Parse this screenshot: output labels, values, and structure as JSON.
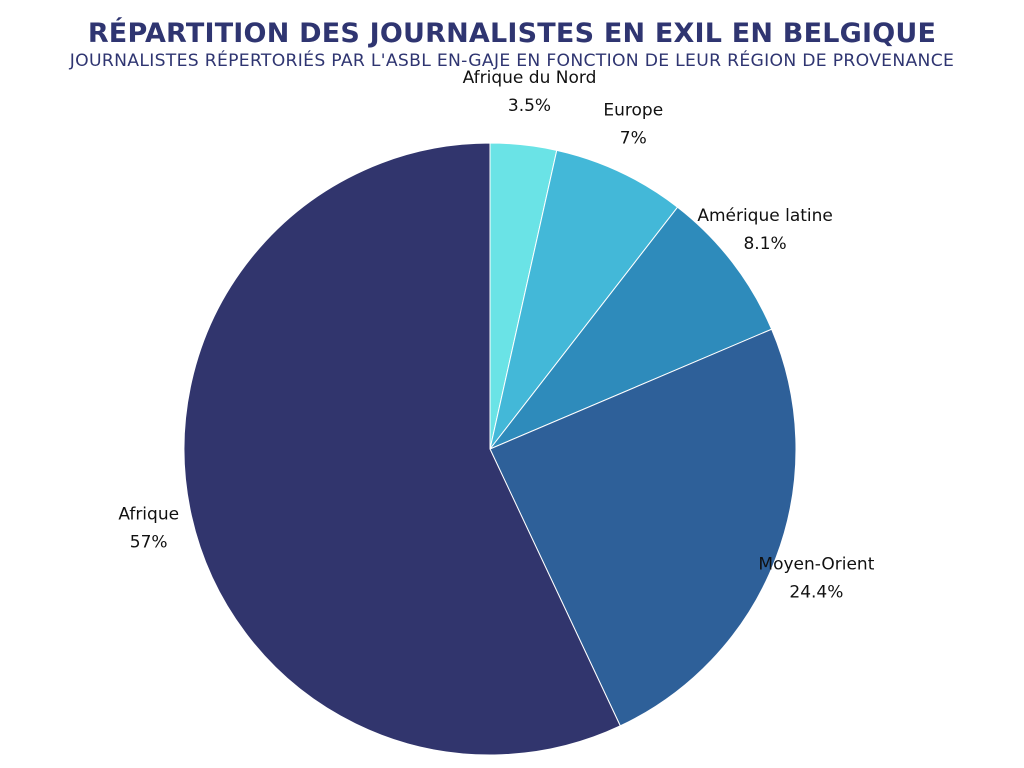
{
  "chart_data": {
    "type": "pie",
    "title": "RÉPARTITION DES JOURNALISTES EN EXIL EN BELGIQUE",
    "subtitle": "JOURNALISTES RÉPERTORIÉS PAR L'ASBL EN-GAJE EN FONCTION DE LEUR RÉGION DE PROVENANCE",
    "start_angle_degrees": 0,
    "direction": "clockwise",
    "label_position": "outside",
    "slices": [
      {
        "label": "Afrique du Nord",
        "value": 3.5,
        "value_label": "3.5%",
        "color": "#6ae3e6"
      },
      {
        "label": "Europe",
        "value": 7,
        "value_label": "7%",
        "color": "#43b8d8"
      },
      {
        "label": "Amérique latine",
        "value": 8.1,
        "value_label": "8.1%",
        "color": "#2e8bbb"
      },
      {
        "label": "Moyen-Orient",
        "value": 24.4,
        "value_label": "24.4%",
        "color": "#2e6099"
      },
      {
        "label": "Afrique",
        "value": 57,
        "value_label": "57%",
        "color": "#31356d"
      }
    ]
  }
}
